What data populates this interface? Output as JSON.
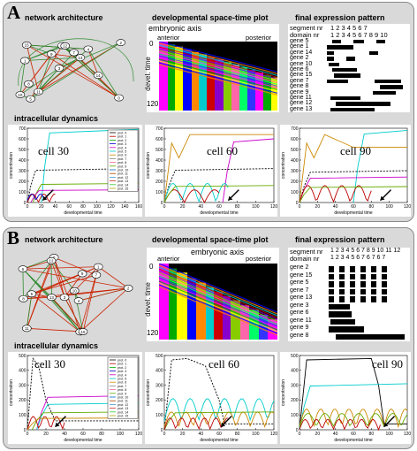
{
  "panels": {
    "A": {
      "label": "A",
      "network_title": "network architecture",
      "spacetime_title": "developmental space-time plot",
      "expression_title": "final expression pattern",
      "dynamics_title": "intracellular dynamics",
      "anterior": "anterior",
      "axis": "embryonic axis",
      "posterior": "posterior",
      "time_zero": "0",
      "time_label": "devel. time",
      "time_end": "120",
      "segment_label": "segment nr",
      "segment_numbers": "1 2   3 4 5 6   7",
      "domain_label": "domain nr",
      "domain_numbers": "1 2 3 4 5 6 7 8 9 10",
      "genes": [
        "gene 5",
        "gene 1",
        "gene 14",
        "gene 2",
        "gene 10",
        "gene 6",
        "gene 15",
        "gene 7",
        "gene 8",
        "gene 9",
        "gene 11",
        "gene 12",
        "gene 13"
      ],
      "cells": [
        "cell 30",
        "cell 60",
        "cell 90"
      ]
    },
    "B": {
      "label": "B",
      "network_title": "network architecture",
      "spacetime_title": "developmental space-time plot",
      "expression_title": "final expression pattern",
      "dynamics_title": "intracellular dynamics",
      "anterior": "anterior",
      "axis": "embryonic axis",
      "posterior": "posterior",
      "time_zero": "0",
      "time_label": "devel. time",
      "time_end": "120",
      "segment_label": "segment nr",
      "segment_numbers": "1 2 3 4 5 6 7 8 9 10 11 12",
      "domain_label": "domain nr",
      "domain_numbers": "1 2 3 4 5 6 7 6 7 6 7",
      "genes": [
        "gene 2",
        "gene 15",
        "gene 5",
        "gene 7",
        "gene 13",
        "gene 3",
        "gene 6",
        "gene 11",
        "gene 9",
        "gene 8"
      ],
      "cells": [
        "cell 30",
        "cell 60",
        "cell 90"
      ]
    }
  },
  "axes": {
    "xlabel": "developmental time",
    "ylabel": "concentration",
    "A_ticks_y": [
      "0",
      "100",
      "200",
      "300",
      "400",
      "500",
      "600",
      "700"
    ],
    "A_cell30_ticks_x": [
      "0",
      "20",
      "40",
      "60",
      "80",
      "100",
      "120",
      "140",
      "160"
    ],
    "A_ticks_x": [
      "0",
      "20",
      "40",
      "60",
      "80",
      "100",
      "120"
    ],
    "B_ticks_y": [
      "0",
      "100",
      "200",
      "300",
      "400",
      "500"
    ],
    "B_ticks_x": [
      "0",
      "20",
      "40",
      "60",
      "80",
      "100",
      "120"
    ]
  },
  "legend": [
    "prot. 0",
    "prot. 1",
    "prot. 2",
    "prot. 3",
    "prot. 4",
    "prot. 5",
    "prot. 6",
    "prot. 7",
    "prot. 8",
    "prot. 9",
    "prot. 10",
    "prot. 11",
    "prot. 12",
    "prot. 13",
    "prot. 14",
    "prot. 15"
  ],
  "colors": {
    "panel_bg": "#d9d9d9",
    "activation": "#2e8b2e",
    "repression": "#cc2200"
  }
}
